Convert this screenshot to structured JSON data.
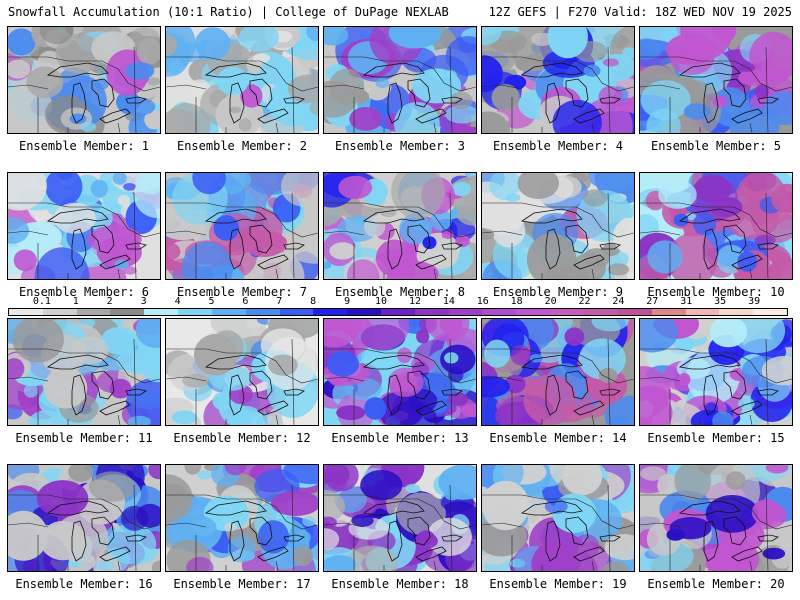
{
  "header": {
    "left_title": "Snowfall Accumulation (10:1 Ratio) | College of DuPage NEXLAB",
    "right_title": "12Z GEFS | F270 Valid: 18Z WED NOV 19 2025"
  },
  "legend": {
    "values": [
      "0.1",
      "1",
      "2",
      "3",
      "4",
      "5",
      "6",
      "7",
      "8",
      "9",
      "10",
      "12",
      "14",
      "16",
      "18",
      "20",
      "22",
      "24",
      "27",
      "31",
      "35",
      "39"
    ],
    "colors": [
      "#e8e8e8",
      "#cfcfcf",
      "#a8a8a8",
      "#8a8a8a",
      "#b4ecf8",
      "#7fd6f4",
      "#5fb0f2",
      "#4b8bef",
      "#3a5df5",
      "#2121ee",
      "#2b0fc4",
      "#6a22c8",
      "#8b34c6",
      "#a040c8",
      "#b04cd0",
      "#c056d0",
      "#c85ac0",
      "#c45aa8",
      "#c05098",
      "#e08888",
      "#f0b8b0",
      "#f8d8c8",
      "#faece0"
    ]
  },
  "panels": [
    {
      "label": "Ensemble Member: 1",
      "palette": [
        "#c8c8c8",
        "#a8a8a8",
        "#8a8a8a",
        "#7fd6f4",
        "#4b8bef",
        "#c056d0"
      ],
      "intensity": 0.45
    },
    {
      "label": "Ensemble Member: 2",
      "palette": [
        "#e0e0e0",
        "#c8c8c8",
        "#a8a8a8",
        "#7fd6f4",
        "#5fb0f2",
        "#c056d0"
      ],
      "intensity": 0.35
    },
    {
      "label": "Ensemble Member: 3",
      "palette": [
        "#c8c8c8",
        "#9a9a9a",
        "#7fd6f4",
        "#5fb0f2",
        "#3a5df5",
        "#a040c8"
      ],
      "intensity": 0.55
    },
    {
      "label": "Ensemble Member: 4",
      "palette": [
        "#c8c8c8",
        "#9a9a9a",
        "#7fd6f4",
        "#4b8bef",
        "#2121ee",
        "#c056d0"
      ],
      "intensity": 0.55
    },
    {
      "label": "Ensemble Member: 5",
      "palette": [
        "#9a9a9a",
        "#7fd6f4",
        "#4b8bef",
        "#3a5df5",
        "#8b34c6",
        "#c056d0"
      ],
      "intensity": 0.85
    },
    {
      "label": "Ensemble Member: 6",
      "palette": [
        "#e0e0e0",
        "#b4ecf8",
        "#7fd6f4",
        "#5fb0f2",
        "#3a5df5",
        "#c056d0"
      ],
      "intensity": 0.6
    },
    {
      "label": "Ensemble Member: 7",
      "palette": [
        "#c8c8c8",
        "#7fd6f4",
        "#5fb0f2",
        "#4b8bef",
        "#3a5df5",
        "#c45aa8"
      ],
      "intensity": 0.65
    },
    {
      "label": "Ensemble Member: 8",
      "palette": [
        "#d0d0d0",
        "#a8a8a8",
        "#7fd6f4",
        "#5fb0f2",
        "#2121ee",
        "#c056d0"
      ],
      "intensity": 0.55
    },
    {
      "label": "Ensemble Member: 9",
      "palette": [
        "#e0e0e0",
        "#c8c8c8",
        "#9a9a9a",
        "#7fd6f4",
        "#4b8bef",
        "#c45aa8"
      ],
      "intensity": 0.4
    },
    {
      "label": "Ensemble Member: 10",
      "palette": [
        "#b4ecf8",
        "#7fd6f4",
        "#5fb0f2",
        "#3a5df5",
        "#8b34c6",
        "#c45aa8"
      ],
      "intensity": 0.7
    },
    {
      "label": "Ensemble Member: 11",
      "palette": [
        "#c8c8c8",
        "#9a9a9a",
        "#7fd6f4",
        "#5fb0f2",
        "#3a5df5",
        "#a040c8"
      ],
      "intensity": 0.55
    },
    {
      "label": "Ensemble Member: 12",
      "palette": [
        "#e8e8e8",
        "#d0d0d0",
        "#a8a8a8",
        "#7fd6f4",
        "#4b8bef",
        "#a040c8"
      ],
      "intensity": 0.3
    },
    {
      "label": "Ensemble Member: 13",
      "palette": [
        "#7fd6f4",
        "#5fb0f2",
        "#3a5df5",
        "#2b0fc4",
        "#8b34c6",
        "#c056d0"
      ],
      "intensity": 0.8
    },
    {
      "label": "Ensemble Member: 14",
      "palette": [
        "#9a9a9a",
        "#7fd6f4",
        "#4b8bef",
        "#2121ee",
        "#8b34c6",
        "#c45aa8"
      ],
      "intensity": 0.75
    },
    {
      "label": "Ensemble Member: 15",
      "palette": [
        "#d0d0d0",
        "#b4ecf8",
        "#7fd6f4",
        "#4b8bef",
        "#2121ee",
        "#c056d0"
      ],
      "intensity": 0.65
    },
    {
      "label": "Ensemble Member: 16",
      "palette": [
        "#c8c8c8",
        "#9a9a9a",
        "#7fd6f4",
        "#4b8bef",
        "#2b0fc4",
        "#8b34c6"
      ],
      "intensity": 0.6
    },
    {
      "label": "Ensemble Member: 17",
      "palette": [
        "#d0d0d0",
        "#9a9a9a",
        "#7fd6f4",
        "#5fb0f2",
        "#3a5df5",
        "#a040c8"
      ],
      "intensity": 0.6
    },
    {
      "label": "Ensemble Member: 18",
      "palette": [
        "#e0e0e0",
        "#b0b0b0",
        "#7fd6f4",
        "#5fb0f2",
        "#2b0fc4",
        "#8b34c6"
      ],
      "intensity": 0.7
    },
    {
      "label": "Ensemble Member: 19",
      "palette": [
        "#d0d0d0",
        "#9a9a9a",
        "#7fd6f4",
        "#5fb0f2",
        "#3a5df5",
        "#a040c8"
      ],
      "intensity": 0.55
    },
    {
      "label": "Ensemble Member: 20",
      "palette": [
        "#c8c8c8",
        "#9a9a9a",
        "#7fd6f4",
        "#4b8bef",
        "#2b0fc4",
        "#c056d0"
      ],
      "intensity": 0.7
    }
  ]
}
